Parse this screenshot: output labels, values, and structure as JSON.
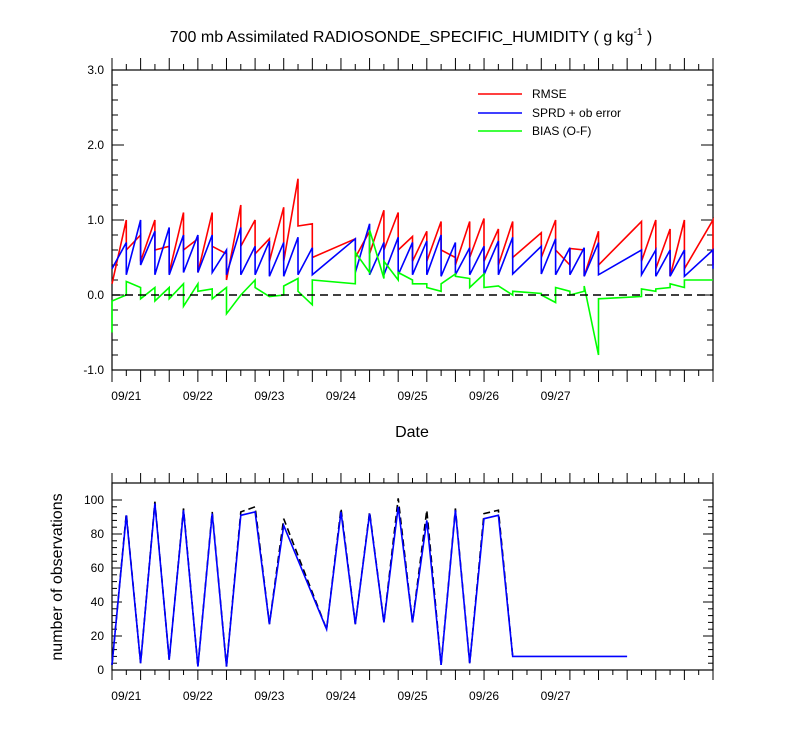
{
  "chart_data": [
    {
      "type": "line",
      "title": "700 mb Assimilated RADIOSONDE_SPECIFIC_HUMIDITY ( g kg",
      "title_exponent": "-1",
      "title_tail": " )",
      "xlabel": "Date",
      "ylabel": "",
      "ylim": [
        -1.0,
        3.0
      ],
      "yticks": [
        -1.0,
        0.0,
        1.0,
        2.0,
        3.0
      ],
      "ytick_labels": [
        "-1.0",
        "0.0",
        "1.0",
        "2.0",
        "3.0"
      ],
      "xlim": [
        "09/20 21:00",
        "09/27 21:00"
      ],
      "xtick_labels": [
        "09/21",
        "09/22",
        "09/23",
        "09/24",
        "09/25",
        "09/26",
        "09/27"
      ],
      "legend_position": "top-right",
      "zero_line": true,
      "colors": {
        "rmse": "#ff0000",
        "sprd": "#0000ff",
        "bias": "#00ff00"
      },
      "series": [
        {
          "name": "RMSE",
          "key": "rmse",
          "x": [
            0.0,
            0.5,
            0.5,
            1.0,
            1.0,
            1.5,
            1.5,
            2.0,
            2.0,
            2.5,
            2.5,
            3.0,
            3.0,
            3.5,
            3.5,
            4.0,
            4.0,
            4.5,
            4.5,
            5.0,
            5.0,
            5.5,
            5.5,
            6.0,
            6.0,
            6.5,
            6.5,
            7.0,
            7.0,
            8.5,
            8.5,
            9.0,
            9.0,
            9.5,
            9.5,
            10.0,
            10.0,
            10.5,
            10.5,
            11.0,
            11.0,
            11.5,
            11.5,
            12.0,
            12.0,
            12.5,
            12.5,
            13.0,
            13.0,
            13.5,
            13.5,
            14.0,
            14.0,
            15.0,
            15.0,
            15.5,
            15.5,
            16.0,
            16.0,
            16.5,
            16.5,
            17.0,
            17.0,
            18.5,
            18.5,
            19.0,
            19.0,
            19.5,
            19.5,
            20.0,
            20.0,
            21.0,
            21.0
          ],
          "y": [
            0.15,
            1.0,
            0.6,
            0.8,
            0.45,
            1.0,
            0.6,
            0.65,
            0.3,
            1.1,
            0.6,
            0.75,
            0.3,
            1.1,
            0.65,
            0.55,
            0.2,
            1.2,
            0.65,
            1.0,
            0.55,
            0.75,
            0.45,
            1.17,
            0.45,
            1.55,
            0.92,
            0.95,
            0.5,
            0.75,
            0.5,
            0.85,
            0.55,
            1.13,
            0.6,
            1.1,
            0.6,
            0.78,
            0.45,
            0.85,
            0.45,
            0.98,
            0.6,
            0.5,
            0.4,
            0.98,
            0.5,
            1.02,
            0.45,
            0.88,
            0.4,
            0.98,
            0.5,
            0.83,
            0.5,
            1.0,
            0.6,
            0.4,
            0.62,
            0.6,
            0.25,
            0.85,
            0.4,
            0.98,
            0.45,
            1.0,
            0.35,
            0.88,
            0.25,
            1.0,
            0.35,
            1.0,
            0.4
          ]
        },
        {
          "name": "SPRD + ob error",
          "key": "sprd",
          "x": [
            0.0,
            0.5,
            0.5,
            1.0,
            1.0,
            1.5,
            1.5,
            2.0,
            2.0,
            2.5,
            2.5,
            3.0,
            3.0,
            3.5,
            3.5,
            4.0,
            4.0,
            4.5,
            4.5,
            5.0,
            5.0,
            5.5,
            5.5,
            6.0,
            6.0,
            6.5,
            6.5,
            7.0,
            7.0,
            8.5,
            8.5,
            9.0,
            9.0,
            9.5,
            9.5,
            10.0,
            10.0,
            10.5,
            10.5,
            11.0,
            11.0,
            11.5,
            11.5,
            12.0,
            12.0,
            12.5,
            12.5,
            13.0,
            13.0,
            13.5,
            13.5,
            14.0,
            14.0,
            15.0,
            15.0,
            15.5,
            15.5,
            16.0,
            16.0,
            16.5,
            16.5,
            17.0,
            17.0,
            18.5,
            18.5,
            19.0,
            19.0,
            19.5,
            19.5,
            20.0,
            20.0,
            21.0,
            21.0
          ],
          "y": [
            0.35,
            0.7,
            0.27,
            1.0,
            0.4,
            0.85,
            0.27,
            0.9,
            0.27,
            0.8,
            0.3,
            0.8,
            0.3,
            0.8,
            0.3,
            0.6,
            0.27,
            0.9,
            0.27,
            0.65,
            0.27,
            0.72,
            0.25,
            0.7,
            0.25,
            0.77,
            0.27,
            0.63,
            0.27,
            0.75,
            0.3,
            0.95,
            0.27,
            0.7,
            0.27,
            0.77,
            0.27,
            0.7,
            0.27,
            0.72,
            0.27,
            0.8,
            0.25,
            0.7,
            0.27,
            0.63,
            0.27,
            0.65,
            0.27,
            0.72,
            0.27,
            0.77,
            0.28,
            0.65,
            0.28,
            0.75,
            0.27,
            0.63,
            0.27,
            0.63,
            0.25,
            0.7,
            0.27,
            0.6,
            0.27,
            0.6,
            0.25,
            0.6,
            0.25,
            0.6,
            0.25,
            0.6,
            0.35
          ]
        },
        {
          "name": "BIAS (O-F)",
          "key": "bias",
          "x": [
            0.0,
            0.0,
            0.5,
            0.5,
            1.0,
            1.0,
            1.5,
            1.5,
            2.0,
            2.0,
            2.5,
            2.5,
            3.0,
            3.0,
            3.5,
            3.5,
            4.0,
            4.0,
            4.5,
            4.5,
            5.0,
            5.0,
            5.5,
            5.5,
            6.0,
            6.0,
            6.5,
            6.5,
            7.0,
            7.0,
            8.5,
            8.5,
            9.0,
            9.0,
            9.5,
            9.5,
            10.0,
            10.0,
            10.5,
            10.5,
            11.0,
            11.0,
            11.5,
            11.5,
            12.0,
            12.0,
            12.5,
            12.5,
            13.0,
            13.0,
            13.5,
            13.5,
            14.0,
            14.0,
            15.0,
            15.0,
            15.5,
            15.5,
            16.0,
            16.0,
            16.5,
            16.5,
            17.0,
            17.0,
            18.5,
            18.5,
            19.0,
            19.0,
            19.5,
            19.5,
            20.0,
            20.0,
            21.0
          ],
          "y": [
            -0.5,
            -0.08,
            0.0,
            0.18,
            0.1,
            -0.05,
            0.1,
            -0.08,
            0.1,
            -0.05,
            0.15,
            -0.15,
            0.15,
            0.05,
            0.08,
            -0.05,
            0.1,
            -0.25,
            0.0,
            0.0,
            0.2,
            0.1,
            -0.02,
            -0.02,
            0.0,
            0.12,
            0.22,
            0.05,
            -0.13,
            0.2,
            0.15,
            0.57,
            0.3,
            0.87,
            0.22,
            0.45,
            0.2,
            0.3,
            0.2,
            0.15,
            0.15,
            0.1,
            0.05,
            0.15,
            0.28,
            0.25,
            0.22,
            0.1,
            0.28,
            0.1,
            0.12,
            0.12,
            0.0,
            0.05,
            0.02,
            0.0,
            -0.1,
            0.1,
            0.05,
            0.0,
            0.05,
            0.12,
            -0.8,
            -0.05,
            -0.02,
            0.08,
            0.05,
            0.08,
            0.1,
            0.15,
            0.1,
            0.2,
            0.2
          ]
        },
        {
          "name": "zero",
          "key": "zero",
          "x": [],
          "y": []
        }
      ]
    },
    {
      "type": "line",
      "title": "",
      "xlabel": "",
      "ylabel": "number of observations",
      "ylim": [
        0,
        110
      ],
      "yticks": [
        0,
        20,
        40,
        60,
        80,
        100
      ],
      "ytick_labels": [
        "0",
        "20",
        "40",
        "60",
        "80",
        "100"
      ],
      "xtick_labels": [
        "09/21",
        "09/22",
        "09/23",
        "09/24",
        "09/25",
        "09/26",
        "09/27"
      ],
      "series": [
        {
          "key": "assimilated",
          "color": "#0000ff",
          "x": [
            0.0,
            0.5,
            1.0,
            1.5,
            2.0,
            2.5,
            3.0,
            3.5,
            4.0,
            4.5,
            5.0,
            5.5,
            6.0,
            7.5,
            8.0,
            8.5,
            9.0,
            9.5,
            10.0,
            10.5,
            11.0,
            11.5,
            12.0,
            12.5,
            13.0,
            13.5,
            14.0,
            14.5,
            15.0,
            15.5,
            16.0,
            17.5,
            18.0
          ],
          "y": [
            3,
            91,
            4,
            98,
            6,
            94,
            2,
            92,
            2,
            91,
            93,
            27,
            85,
            24,
            93,
            27,
            92,
            28,
            96,
            28,
            88,
            3,
            94,
            4,
            89,
            91,
            8,
            8,
            8,
            8,
            8,
            8,
            8
          ]
        },
        {
          "key": "observed",
          "color": "#000000",
          "dash": true,
          "x": [
            0.0,
            0.5,
            1.0,
            1.5,
            2.0,
            2.5,
            3.0,
            3.5,
            4.0,
            4.5,
            5.0,
            5.5,
            6.0,
            7.5,
            8.0,
            8.5,
            9.0,
            9.5,
            10.0,
            10.5,
            11.0,
            11.5,
            12.0,
            12.5,
            13.0,
            13.5,
            14.0
          ],
          "y": [
            3,
            92,
            4,
            99,
            6,
            95,
            2,
            93,
            2,
            93,
            96,
            27,
            89,
            24,
            95,
            27,
            93,
            28,
            101,
            28,
            94,
            3,
            95,
            4,
            92,
            94,
            8
          ]
        }
      ]
    }
  ]
}
